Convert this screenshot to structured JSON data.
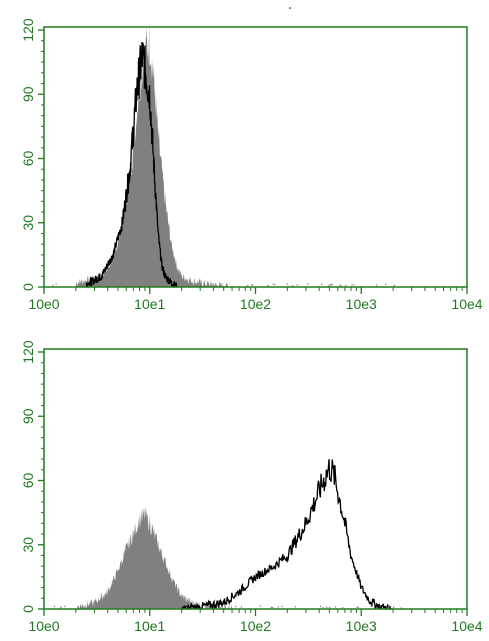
{
  "colors": {
    "axis": "#1f7a1f",
    "filled_histogram": "#808080",
    "outline_histogram": "#000000"
  },
  "chart_data": [
    {
      "type": "area",
      "x_scale": "log",
      "xlim": [
        1,
        10000
      ],
      "ylim": [
        0,
        120
      ],
      "x_tick_labels": [
        "10e0",
        "10e1",
        "10e2",
        "10e3",
        "10e4"
      ],
      "y_tick_labels": [
        "0",
        "30",
        "60",
        "90",
        "120"
      ],
      "grid": false,
      "series": [
        {
          "style": "filled-gray",
          "x": [
            2.0,
            3.0,
            4.0,
            5.0,
            6.0,
            7.0,
            8.0,
            9.0,
            10.0,
            11.0,
            12.0,
            14.0,
            16.0,
            18.0,
            20.0,
            25.0,
            30.0,
            40.0,
            60.0
          ],
          "y": [
            2,
            4,
            8,
            20,
            40,
            65,
            95,
            110,
            115,
            95,
            70,
            40,
            20,
            10,
            5,
            3,
            2,
            1,
            0
          ]
        },
        {
          "style": "black-outline",
          "x": [
            2.5,
            3.5,
            4.5,
            5.5,
            6.5,
            7.5,
            8.0,
            8.5,
            9.0,
            9.5,
            10.0,
            11.0,
            12.0,
            13.0,
            14.0,
            16.0,
            18.0
          ],
          "y": [
            1,
            5,
            15,
            30,
            55,
            90,
            100,
            108,
            102,
            95,
            90,
            55,
            25,
            10,
            5,
            2,
            0
          ]
        }
      ]
    },
    {
      "type": "area",
      "x_scale": "log",
      "xlim": [
        1,
        10000
      ],
      "ylim": [
        0,
        120
      ],
      "x_tick_labels": [
        "10e0",
        "10e1",
        "10e2",
        "10e3",
        "10e4"
      ],
      "y_tick_labels": [
        "0",
        "30",
        "60",
        "90",
        "120"
      ],
      "grid": false,
      "series": [
        {
          "style": "filled-gray",
          "x": [
            2.0,
            3.0,
            4.0,
            5.0,
            6.0,
            7.0,
            8.0,
            9.0,
            10.0,
            12.0,
            14.0,
            16.0,
            18.0,
            20.0,
            25.0,
            30.0,
            40.0,
            60.0
          ],
          "y": [
            1,
            3,
            8,
            18,
            28,
            35,
            42,
            44,
            40,
            30,
            22,
            15,
            10,
            6,
            3,
            2,
            1,
            0
          ]
        },
        {
          "style": "black-outline",
          "x": [
            20,
            30,
            50,
            70,
            100,
            150,
            200,
            300,
            400,
            500,
            550,
            600,
            700,
            800,
            1000,
            1200,
            1500,
            2000
          ],
          "y": [
            0,
            1,
            3,
            8,
            15,
            20,
            25,
            40,
            55,
            66,
            63,
            55,
            40,
            25,
            10,
            4,
            1,
            0
          ]
        }
      ]
    }
  ]
}
